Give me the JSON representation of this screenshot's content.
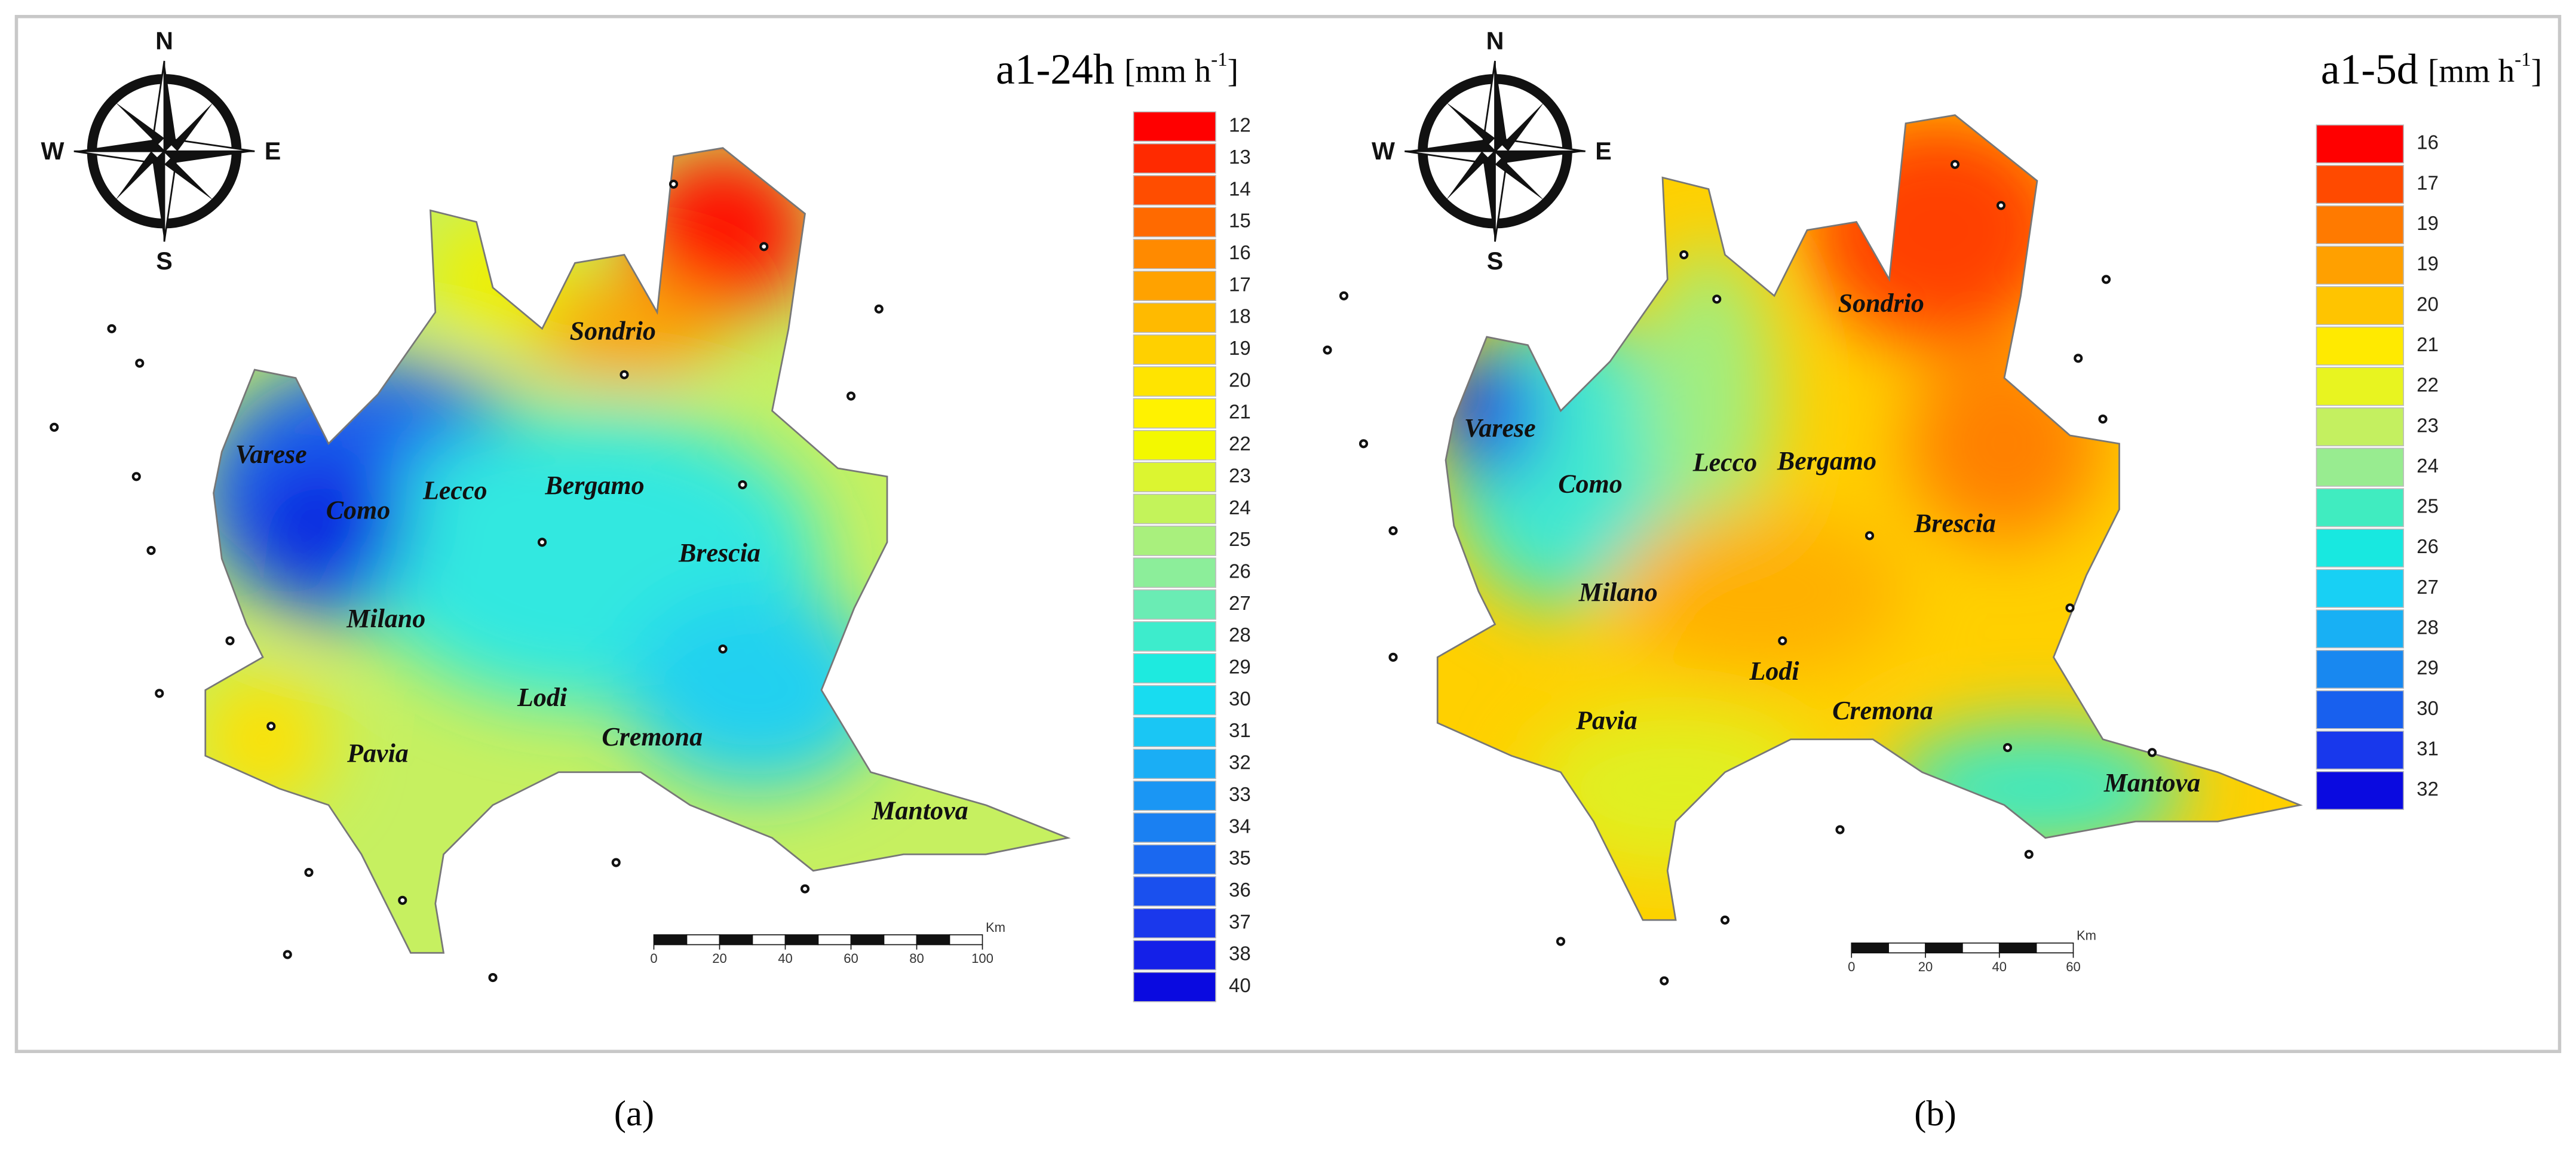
{
  "panels": [
    {
      "title": "a1-24h",
      "unit": {
        "base": "[mm h",
        "sup": "-1",
        "close": "]"
      },
      "compass": {
        "n": "N",
        "e": "E",
        "s": "S",
        "w": "W"
      },
      "legend": [
        12,
        13,
        14,
        15,
        16,
        17,
        18,
        19,
        20,
        21,
        22,
        23,
        24,
        25,
        26,
        27,
        28,
        29,
        30,
        31,
        32,
        33,
        34,
        35,
        36,
        37,
        38,
        40
      ],
      "legend_colors": [
        "#ff0000",
        "#ff2a00",
        "#ff4d00",
        "#ff6a00",
        "#ff8a00",
        "#ffa200",
        "#ffba00",
        "#ffd000",
        "#ffe400",
        "#fff200",
        "#f3f800",
        "#dcf530",
        "#c3f35a",
        "#a9f07d",
        "#8cee9a",
        "#6aecb4",
        "#3deccc",
        "#1eeadf",
        "#18dcf0",
        "#1ac6f4",
        "#1aaef5",
        "#1a96f4",
        "#1a80f2",
        "#1a68f0",
        "#1a50ee",
        "#1a38ec",
        "#1420e8",
        "#0a0ae0"
      ],
      "cities": [
        "Varese",
        "Como",
        "Lecco",
        "Bergamo",
        "Sondrio",
        "Brescia",
        "Milano",
        "Lodi",
        "Pavia",
        "Cremona",
        "Mantova"
      ],
      "scale_ticks": [
        0,
        20,
        40,
        60,
        80,
        100
      ],
      "scale_unit": "Km",
      "caption": "(a)"
    },
    {
      "title": "a1-5d",
      "unit": {
        "base": "[mm h",
        "sup": "-1",
        "close": "]"
      },
      "compass": {
        "n": "N",
        "e": "E",
        "s": "S",
        "w": "W"
      },
      "legend": [
        16,
        17,
        19,
        19,
        20,
        21,
        22,
        23,
        24,
        25,
        26,
        27,
        28,
        29,
        30,
        31,
        32
      ],
      "legend_colors": [
        "#ff0000",
        "#ff4a00",
        "#ff7a00",
        "#ffa000",
        "#ffc400",
        "#ffea00",
        "#e8f420",
        "#c4f060",
        "#98ec90",
        "#40ecc0",
        "#18e8e0",
        "#18d0f4",
        "#18b0f4",
        "#1888f0",
        "#1860ee",
        "#1838ec",
        "#0a0ae0"
      ],
      "cities": [
        "Varese",
        "Como",
        "Lecco",
        "Bergamo",
        "Sondrio",
        "Brescia",
        "Milano",
        "Lodi",
        "Pavia",
        "Cremona",
        "Mantova"
      ],
      "scale_ticks": [
        0,
        20,
        40,
        60
      ],
      "scale_unit": "Km",
      "caption": "(b)"
    }
  ]
}
